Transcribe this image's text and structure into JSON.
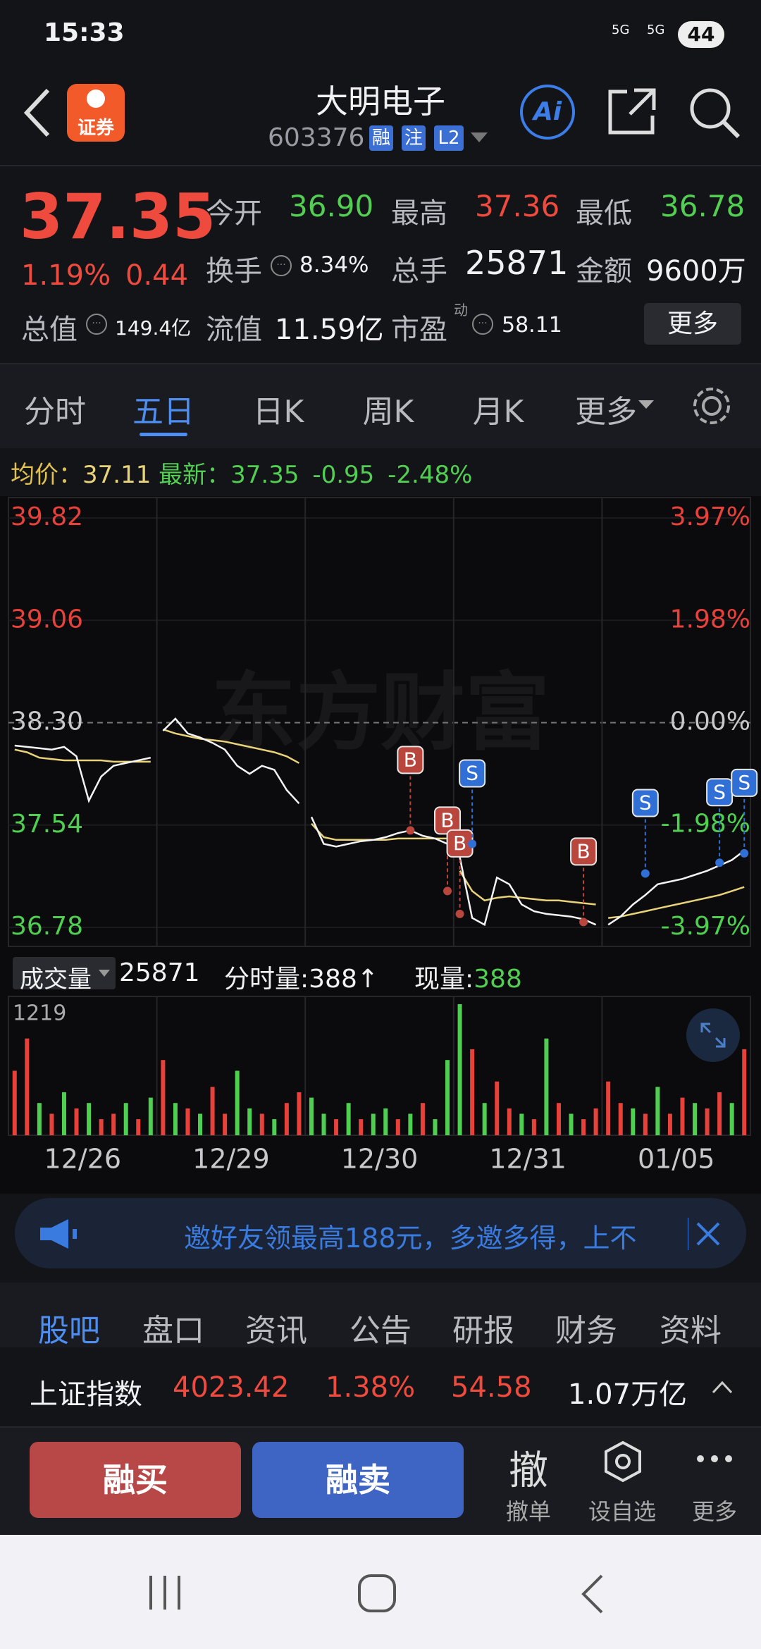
{
  "status": {
    "time": "15:33",
    "network": [
      "5G",
      "5G"
    ],
    "battery": "44"
  },
  "header": {
    "logo": "证券",
    "title": "大明电子",
    "code": "603376",
    "tags": [
      "融",
      "注",
      "L2"
    ],
    "ai": "Ai"
  },
  "quote": {
    "price": "37.35",
    "change_pct": "1.19%",
    "change": "0.44",
    "more": "更多",
    "fields": [
      {
        "label": "今开",
        "value": "36.90"
      },
      {
        "label": "最高",
        "value": "37.36"
      },
      {
        "label": "最低",
        "value": "36.78"
      },
      {
        "label": "换手",
        "value": "8.34%"
      },
      {
        "label": "总手",
        "value": "25871"
      },
      {
        "label": "金额",
        "value": "9600万"
      },
      {
        "label": "总值",
        "value": "149.4亿"
      },
      {
        "label": "流值",
        "value": "11.59亿"
      },
      {
        "label": "市盈",
        "sup": "动",
        "value": "58.11"
      }
    ]
  },
  "tabs": {
    "items": [
      "分时",
      "五日",
      "日K",
      "周K",
      "月K",
      "更多"
    ],
    "active": 1
  },
  "info": {
    "avg_label": "均价：",
    "avg": "37.11",
    "last_label": "最新：",
    "last": "37.35",
    "change": "-0.95",
    "change_pct": "-2.48%"
  },
  "volume_header": {
    "label": "成交量",
    "total": "25871",
    "tick_label": "分时量:388↑",
    "now_label": "现量:",
    "now": "388"
  },
  "chart_data": {
    "type": "line",
    "watermark": "东方财富",
    "ylim": [
      36.78,
      39.82
    ],
    "yticks": [
      36.78,
      37.54,
      {
        "value": 38.3,
        "label": "38.30"
      },
      39.06,
      39.82
    ],
    "y2lim": [
      -3.97,
      3.97
    ],
    "y2ticks": [
      {
        "value": -3.97,
        "label": "-3.97%"
      },
      {
        "value": -1.98,
        "label": "-1.98%"
      },
      {
        "value": 0,
        "label": "0.00%"
      },
      {
        "value": 1.98,
        "label": "1.98%"
      },
      {
        "value": 3.97,
        "label": "3.97%"
      }
    ],
    "price_color": "#f4f4f4",
    "avg_color": "#e8d27a",
    "up_color": "#e8413a",
    "down_color": "#4fcf50",
    "volume_ylim": [
      0,
      1219
    ],
    "volume_yticks": [
      1219
    ],
    "days": [
      {
        "label": "12/26",
        "price": [
          38.13,
          38.12,
          38.11,
          38.1,
          38.12,
          38.05,
          37.72,
          37.9,
          37.98,
          38.0,
          38.02,
          38.04
        ],
        "avg": [
          38.1,
          38.08,
          38.04,
          38.03,
          38.02,
          38.02,
          38.02,
          38.02,
          38.01,
          38.01,
          38.01,
          38.01
        ],
        "volume": [
          600,
          900,
          300,
          200,
          400,
          250,
          300,
          150,
          200,
          300,
          150,
          350
        ],
        "up": [
          1,
          1,
          0,
          1,
          0,
          1,
          0,
          1,
          1,
          0,
          1,
          0
        ]
      },
      {
        "label": "12/29",
        "price": [
          38.24,
          38.33,
          38.22,
          38.19,
          38.15,
          38.1,
          37.98,
          37.92,
          37.98,
          37.95,
          37.8,
          37.7
        ],
        "avg": [
          38.25,
          38.22,
          38.2,
          38.18,
          38.17,
          38.16,
          38.14,
          38.12,
          38.1,
          38.08,
          38.05,
          38.0
        ],
        "volume": [
          700,
          300,
          250,
          200,
          450,
          200,
          600,
          250,
          200,
          150,
          300,
          400
        ],
        "up": [
          1,
          0,
          1,
          0,
          1,
          1,
          0,
          0,
          1,
          0,
          1,
          1
        ]
      },
      {
        "label": "12/30",
        "price": [
          37.6,
          37.4,
          37.38,
          37.4,
          37.42,
          37.43,
          37.45,
          37.48,
          37.5,
          37.46,
          37.44,
          37.4
        ],
        "avg": [
          37.55,
          37.45,
          37.43,
          37.43,
          37.43,
          37.43,
          37.43,
          37.44,
          37.44,
          37.44,
          37.44,
          37.44
        ],
        "volume": [
          350,
          200,
          150,
          300,
          150,
          200,
          250,
          150,
          200,
          300,
          150,
          700
        ],
        "up": [
          0,
          0,
          1,
          0,
          1,
          0,
          0,
          1,
          0,
          1,
          0,
          0
        ]
      },
      {
        "label": "12/31",
        "price": [
          37.3,
          36.85,
          36.8,
          37.15,
          37.1,
          36.95,
          36.9,
          36.88,
          36.87,
          36.86,
          36.84,
          36.8
        ],
        "avg": [
          37.2,
          37.05,
          36.98,
          37.0,
          37.01,
          37.0,
          36.99,
          36.98,
          36.98,
          36.97,
          36.96,
          36.95
        ],
        "volume": [
          1219,
          800,
          300,
          500,
          250,
          200,
          150,
          900,
          300,
          200,
          150,
          250
        ],
        "up": [
          0,
          1,
          0,
          1,
          1,
          0,
          1,
          0,
          1,
          0,
          1,
          1
        ]
      },
      {
        "label": "01/05",
        "price": [
          36.8,
          36.86,
          36.95,
          37.02,
          37.1,
          37.12,
          37.14,
          37.17,
          37.2,
          37.24,
          37.28,
          37.35
        ],
        "avg": [
          36.85,
          36.86,
          36.88,
          36.9,
          36.92,
          36.94,
          36.96,
          36.98,
          37.0,
          37.02,
          37.05,
          37.08
        ],
        "volume": [
          500,
          300,
          250,
          200,
          450,
          200,
          350,
          300,
          250,
          400,
          300,
          800
        ],
        "up": [
          1,
          1,
          0,
          1,
          0,
          1,
          1,
          0,
          1,
          1,
          0,
          1
        ]
      }
    ],
    "trades": [
      {
        "label": "B",
        "day": 2,
        "index": 8,
        "value": 37.5
      },
      {
        "label": "B",
        "day": 2,
        "index": 11,
        "value": 37.05
      },
      {
        "label": "B",
        "day": 3,
        "index": 0,
        "value": 36.88
      },
      {
        "label": "S",
        "day": 3,
        "index": 1,
        "value": 37.4
      },
      {
        "label": "B",
        "day": 3,
        "index": 10,
        "value": 36.82
      },
      {
        "label": "S",
        "day": 4,
        "index": 3,
        "value": 37.18
      },
      {
        "label": "S",
        "day": 4,
        "index": 9,
        "value": 37.26
      },
      {
        "label": "S",
        "day": 4,
        "index": 11,
        "value": 37.33
      }
    ]
  },
  "banner": {
    "text": "邀好友领最高188元，多邀多得，上不"
  },
  "bottom_tabs": {
    "items": [
      "股吧",
      "盘口",
      "资讯",
      "公告",
      "研报",
      "财务",
      "资料"
    ],
    "active": 0
  },
  "index_bar": {
    "name": "上证指数",
    "value": "4023.42",
    "pct": "1.38%",
    "change": "54.58",
    "amount": "1.07万亿"
  },
  "trade": {
    "buy": "融买",
    "sell": "融卖",
    "actions": [
      {
        "icon": "撤",
        "label": "撤单"
      },
      {
        "label": "设自选"
      },
      {
        "label": "更多"
      }
    ]
  }
}
